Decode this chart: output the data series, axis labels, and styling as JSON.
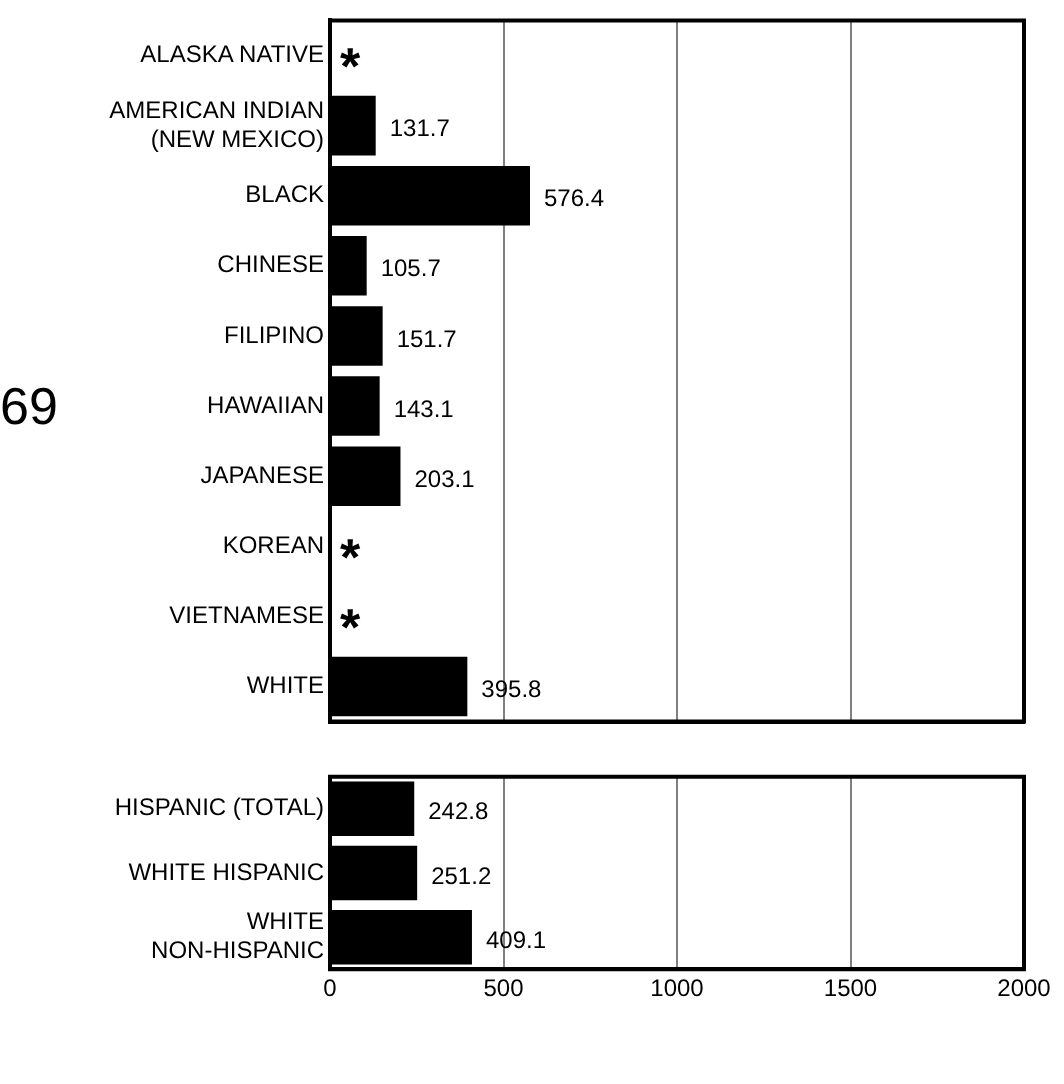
{
  "chart_data": [
    {
      "type": "bar",
      "orientation": "horizontal",
      "categories": [
        "ALASKA NATIVE",
        "AMERICAN INDIAN\n(NEW MEXICO)",
        "BLACK",
        "CHINESE",
        "FILIPINO",
        "HAWAIIAN",
        "JAPANESE",
        "KOREAN",
        "VIETNAMESE",
        "WHITE"
      ],
      "values": [
        null,
        131.7,
        576.4,
        105.7,
        151.7,
        143.1,
        203.1,
        null,
        null,
        395.8
      ],
      "value_labels": [
        "*",
        "131.7",
        "576.4",
        "105.7",
        "151.7",
        "143.1",
        "203.1",
        "*",
        "*",
        "395.8"
      ],
      "color": "#000000",
      "xlim": [
        0,
        2000
      ],
      "xticks": [
        0,
        500,
        1000,
        1500,
        2000
      ],
      "tick_labels": "y",
      "grid": "x",
      "legend": false,
      "annotations": [
        "69"
      ]
    },
    {
      "type": "bar",
      "orientation": "horizontal",
      "categories": [
        "HISPANIC (TOTAL)",
        "WHITE HISPANIC",
        "WHITE\nNON-HISPANIC"
      ],
      "values": [
        242.8,
        251.2,
        409.1
      ],
      "value_labels": [
        "242.8",
        "251.2",
        "409.1"
      ],
      "color": "#000000",
      "xlim": [
        0,
        2000
      ],
      "xticks": [
        0,
        500,
        1000,
        1500,
        2000
      ],
      "grid": "x",
      "legend": false
    }
  ]
}
